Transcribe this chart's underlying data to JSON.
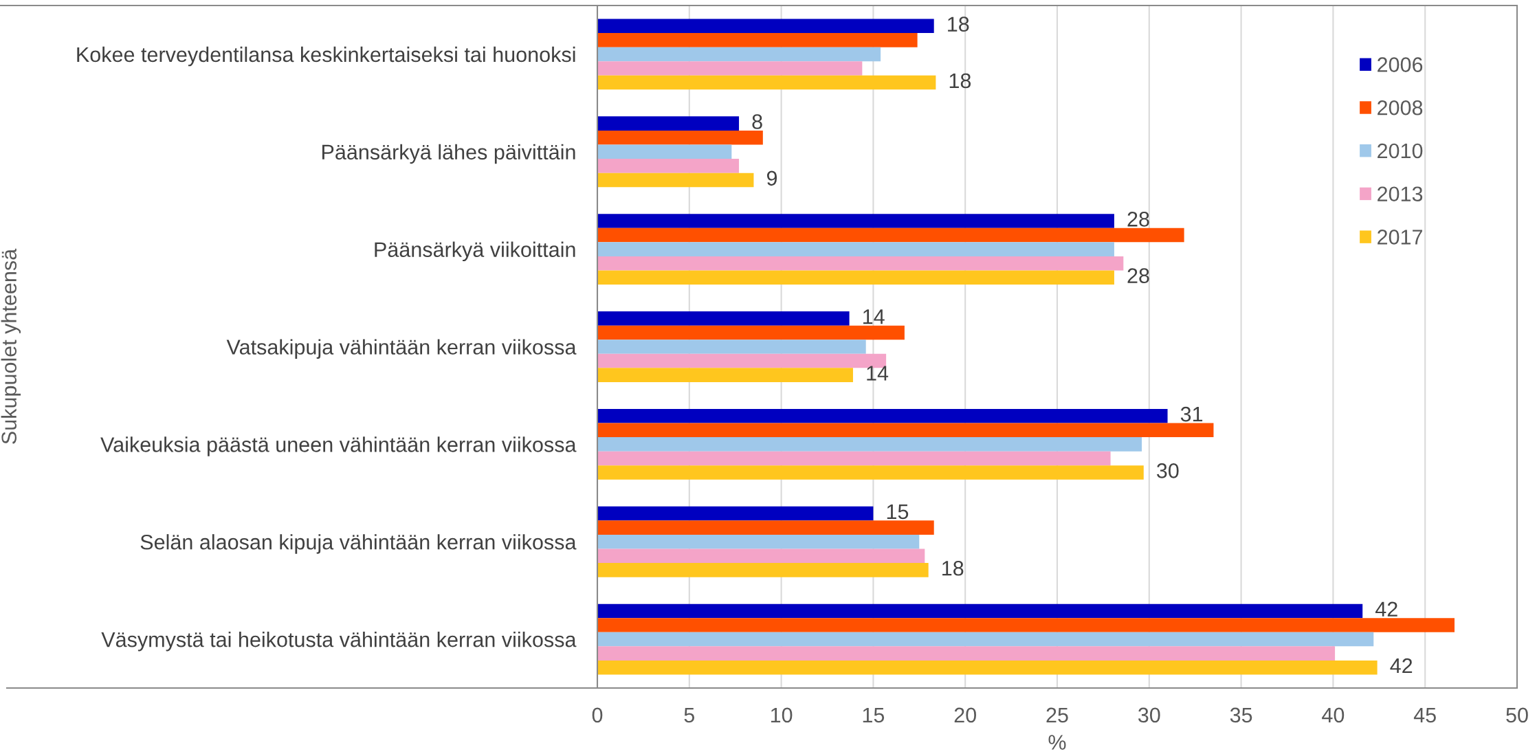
{
  "chart_data": {
    "type": "bar",
    "orientation": "horizontal",
    "ylabel": "Sukupuolet yhteensä",
    "xlabel": "%",
    "categories": [
      "Kokee terveydentilansa keskinkertaiseksi tai huonoksi",
      "Päänsärkyä lähes päivittäin",
      "Päänsärkyä viikoittain",
      "Vatsakipuja vähintään kerran viikossa",
      "Vaikeuksia päästä uneen vähintään kerran viikossa",
      "Selän alaosan kipuja vähintään kerran viikossa",
      "Väsymystä tai heikotusta vähintään kerran viikossa"
    ],
    "series": [
      {
        "name": "2006",
        "color": "#0000c0",
        "values": [
          18.3,
          7.7,
          28.1,
          13.7,
          31.0,
          15.0,
          41.6
        ],
        "value_labels": [
          "18",
          "8",
          "28",
          "14",
          "31",
          "15",
          "42"
        ]
      },
      {
        "name": "2008",
        "color": "#ff5000",
        "values": [
          17.4,
          9.0,
          31.9,
          16.7,
          33.5,
          18.3,
          46.6
        ]
      },
      {
        "name": "2010",
        "color": "#9fc8ea",
        "values": [
          15.4,
          7.3,
          28.1,
          14.6,
          29.6,
          17.5,
          42.2
        ]
      },
      {
        "name": "2013",
        "color": "#f4a4c8",
        "values": [
          14.4,
          7.7,
          28.6,
          15.7,
          27.9,
          17.8,
          40.1
        ]
      },
      {
        "name": "2017",
        "color": "#ffc61e",
        "values": [
          18.4,
          8.5,
          28.1,
          13.9,
          29.7,
          18.0,
          42.4
        ],
        "value_labels": [
          "18",
          "9",
          "28",
          "14",
          "30",
          "18",
          "42"
        ]
      }
    ],
    "xlim": [
      0,
      50
    ],
    "xticks": [
      0,
      5,
      10,
      15,
      20,
      25,
      30,
      35,
      40,
      45,
      50
    ],
    "grid": "x",
    "legend": "top right"
  }
}
